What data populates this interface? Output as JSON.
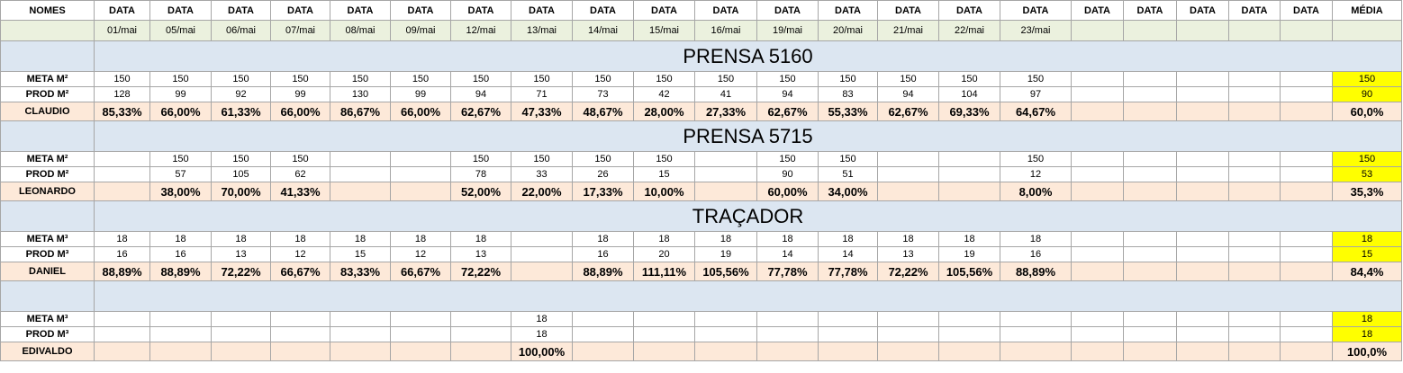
{
  "header": {
    "names_label": "NOMES",
    "data_label": "DATA",
    "media_label": "MÉDIA",
    "dates": [
      "01/mai",
      "05/mai",
      "06/mai",
      "07/mai",
      "08/mai",
      "09/mai",
      "12/mai",
      "13/mai",
      "14/mai",
      "15/mai",
      "16/mai",
      "19/mai",
      "20/mai",
      "21/mai",
      "22/mai",
      "23/mai",
      "",
      "",
      "",
      "",
      ""
    ]
  },
  "sections": [
    {
      "title": "PRENSA 5160",
      "meta_label": "META M²",
      "prod_label": "PROD M²",
      "person": "CLAUDIO",
      "meta": [
        "150",
        "150",
        "150",
        "150",
        "150",
        "150",
        "150",
        "150",
        "150",
        "150",
        "150",
        "150",
        "150",
        "150",
        "150",
        "150",
        "",
        "",
        "",
        "",
        ""
      ],
      "prod": [
        "128",
        "99",
        "92",
        "99",
        "130",
        "99",
        "94",
        "71",
        "73",
        "42",
        "41",
        "94",
        "83",
        "94",
        "104",
        "97",
        "",
        "",
        "",
        "",
        ""
      ],
      "pct": [
        "85,33%",
        "66,00%",
        "61,33%",
        "66,00%",
        "86,67%",
        "66,00%",
        "62,67%",
        "47,33%",
        "48,67%",
        "28,00%",
        "27,33%",
        "62,67%",
        "55,33%",
        "62,67%",
        "69,33%",
        "64,67%",
        "",
        "",
        "",
        "",
        ""
      ],
      "avg_meta": "150",
      "avg_prod": "90",
      "avg_pct": "60,0%"
    },
    {
      "title": "PRENSA 5715",
      "meta_label": "META M²",
      "prod_label": "PROD M²",
      "person": "LEONARDO",
      "meta": [
        "",
        "150",
        "150",
        "150",
        "",
        "",
        "150",
        "150",
        "150",
        "150",
        "",
        "150",
        "150",
        "",
        "",
        "150",
        "",
        "",
        "",
        "",
        ""
      ],
      "prod": [
        "",
        "57",
        "105",
        "62",
        "",
        "",
        "78",
        "33",
        "26",
        "15",
        "",
        "90",
        "51",
        "",
        "",
        "12",
        "",
        "",
        "",
        "",
        ""
      ],
      "pct": [
        "",
        "38,00%",
        "70,00%",
        "41,33%",
        "",
        "",
        "52,00%",
        "22,00%",
        "17,33%",
        "10,00%",
        "",
        "60,00%",
        "34,00%",
        "",
        "",
        "8,00%",
        "",
        "",
        "",
        "",
        ""
      ],
      "avg_meta": "150",
      "avg_prod": "53",
      "avg_pct": "35,3%"
    },
    {
      "title": "TRAÇADOR",
      "meta_label": "META M³",
      "prod_label": "PROD M³",
      "person": "DANIEL",
      "meta": [
        "18",
        "18",
        "18",
        "18",
        "18",
        "18",
        "18",
        "",
        "18",
        "18",
        "18",
        "18",
        "18",
        "18",
        "18",
        "18",
        "",
        "",
        "",
        "",
        ""
      ],
      "prod": [
        "16",
        "16",
        "13",
        "12",
        "15",
        "12",
        "13",
        "",
        "16",
        "20",
        "19",
        "14",
        "14",
        "13",
        "19",
        "16",
        "",
        "",
        "",
        "",
        ""
      ],
      "pct": [
        "88,89%",
        "88,89%",
        "72,22%",
        "66,67%",
        "83,33%",
        "66,67%",
        "72,22%",
        "",
        "88,89%",
        "111,11%",
        "105,56%",
        "77,78%",
        "77,78%",
        "72,22%",
        "105,56%",
        "88,89%",
        "",
        "",
        "",
        "",
        ""
      ],
      "avg_meta": "18",
      "avg_prod": "15",
      "avg_pct": "84,4%"
    },
    {
      "title": "",
      "meta_label": "META M³",
      "prod_label": "PROD M³",
      "person": "EDIVALDO",
      "meta": [
        "",
        "",
        "",
        "",
        "",
        "",
        "",
        "18",
        "",
        "",
        "",
        "",
        "",
        "",
        "",
        "",
        "",
        "",
        "",
        "",
        ""
      ],
      "prod": [
        "",
        "",
        "",
        "",
        "",
        "",
        "",
        "18",
        "",
        "",
        "",
        "",
        "",
        "",
        "",
        "",
        "",
        "",
        "",
        "",
        ""
      ],
      "pct": [
        "",
        "",
        "",
        "",
        "",
        "",
        "",
        "100,00%",
        "",
        "",
        "",
        "",
        "",
        "",
        "",
        "",
        "",
        "",
        "",
        "",
        ""
      ],
      "avg_meta": "18",
      "avg_prod": "18",
      "avg_pct": "100,0%"
    }
  ],
  "colors": {
    "header_date_row": "#ebf1de",
    "section_row": "#dce6f1",
    "percent_row": "#fde9d9",
    "average_highlight": "#ffff00",
    "grid": "#a6a6a6"
  }
}
